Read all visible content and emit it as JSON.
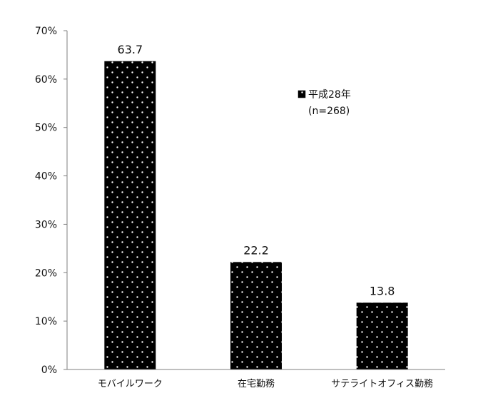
{
  "chart_data": {
    "type": "bar",
    "categories": [
      "モバイルワーク",
      "在宅勤務",
      "サテライトオフィス勤務"
    ],
    "series": [
      {
        "name": "平成28年",
        "values": [
          63.7,
          22.2,
          13.8
        ]
      }
    ],
    "data_labels": [
      "63.7",
      "22.2",
      "13.8"
    ],
    "legend": {
      "series_label": "平成28年",
      "note": "(n=268)",
      "placement": "top-right"
    },
    "y_ticks": [
      "0%",
      "10%",
      "20%",
      "30%",
      "40%",
      "50%",
      "60%",
      "70%"
    ],
    "ylim": [
      0,
      70
    ],
    "grid": false,
    "colors": {
      "bar": "#000000",
      "dots": "#ffffff",
      "axis": "#7f7f7f"
    }
  }
}
